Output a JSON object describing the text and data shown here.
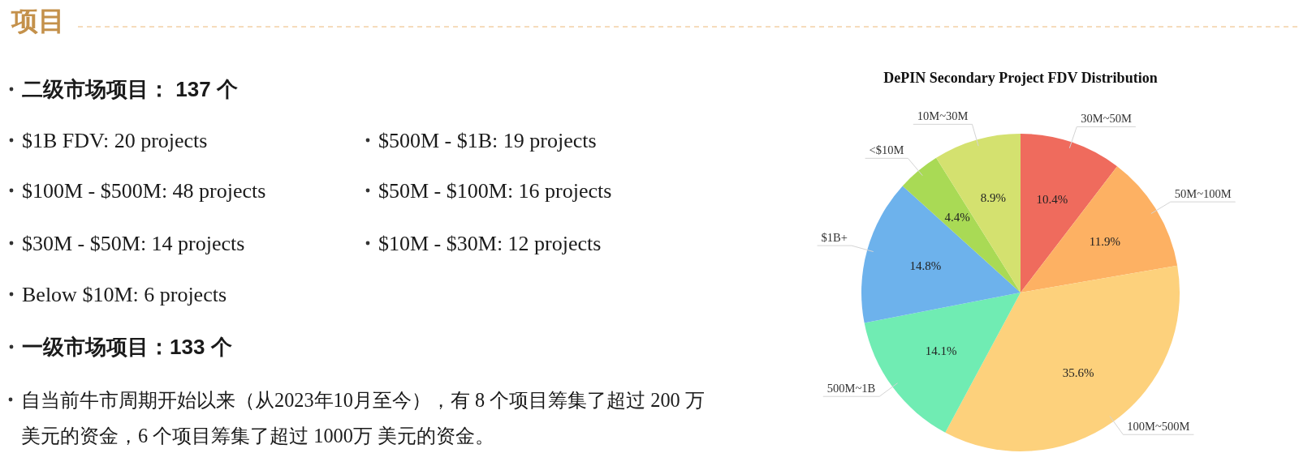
{
  "chart_data": [
    {
      "type": "other",
      "title": "项目",
      "annotations": [
        "二级市场项目： 137 个",
        "$1B FDV: 20 projects",
        "$500M - $1B: 19 projects",
        "$100M - $500M: 48 projects",
        "$50M - $100M: 16 projects",
        "$30M - $50M: 14 projects",
        "$10M - $30M: 12 projects",
        "Below $10M: 6 projects",
        "一级市场项目：133 个",
        "自当前牛市周期开始以来（从2023年10月至今），有 8 个项目筹集了超过 200 万",
        "美元的资金，6 个项目筹集了超过 1000万 美元的资金。"
      ]
    },
    {
      "type": "pie",
      "title": "DePIN Secondary Project FDV Distribution",
      "categories": [
        "30M~50M",
        "50M~100M",
        "100M~500M",
        "500M~1B",
        "$1B+",
        "<$10M",
        "10M~30M"
      ],
      "values": [
        10.4,
        11.9,
        35.6,
        14.1,
        14.8,
        4.4,
        8.9
      ],
      "colors": [
        "#ef6b5d",
        "#fdb163",
        "#fdd17c",
        "#70ecb3",
        "#6db2ec",
        "#a9da55",
        "#d4e16f"
      ],
      "value_labels": [
        "10.4%",
        "11.9%",
        "35.6%",
        "14.1%",
        "14.8%",
        "4.4%",
        "8.9%"
      ]
    }
  ]
}
